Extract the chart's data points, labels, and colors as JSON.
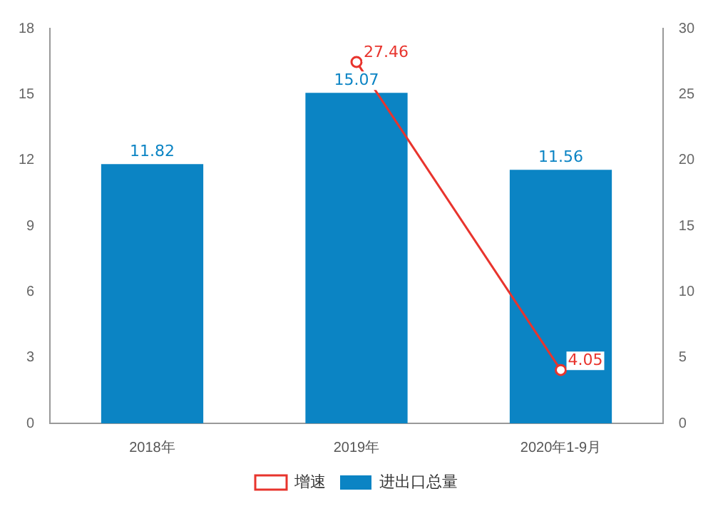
{
  "chart_data": {
    "type": "bar",
    "categories": [
      "2018年",
      "2019年",
      "2020年1-9月"
    ],
    "series": [
      {
        "name": "进出口总量",
        "color": "#0b84c4",
        "values": [
          11.82,
          15.07,
          11.56
        ]
      },
      {
        "name": "增速",
        "type": "line",
        "axis": "y2",
        "color": "#e8342d",
        "values": [
          null,
          27.46,
          4.05
        ],
        "marker": "circle"
      }
    ],
    "ylim": [
      0,
      18
    ],
    "yticks": [
      0,
      3,
      6,
      9,
      12,
      15,
      18
    ],
    "y2lim": [
      0,
      30
    ],
    "y2ticks": [
      0,
      5,
      10,
      15,
      20,
      25,
      30
    ],
    "data_labels": true,
    "legend": "bottom",
    "grid": false
  }
}
